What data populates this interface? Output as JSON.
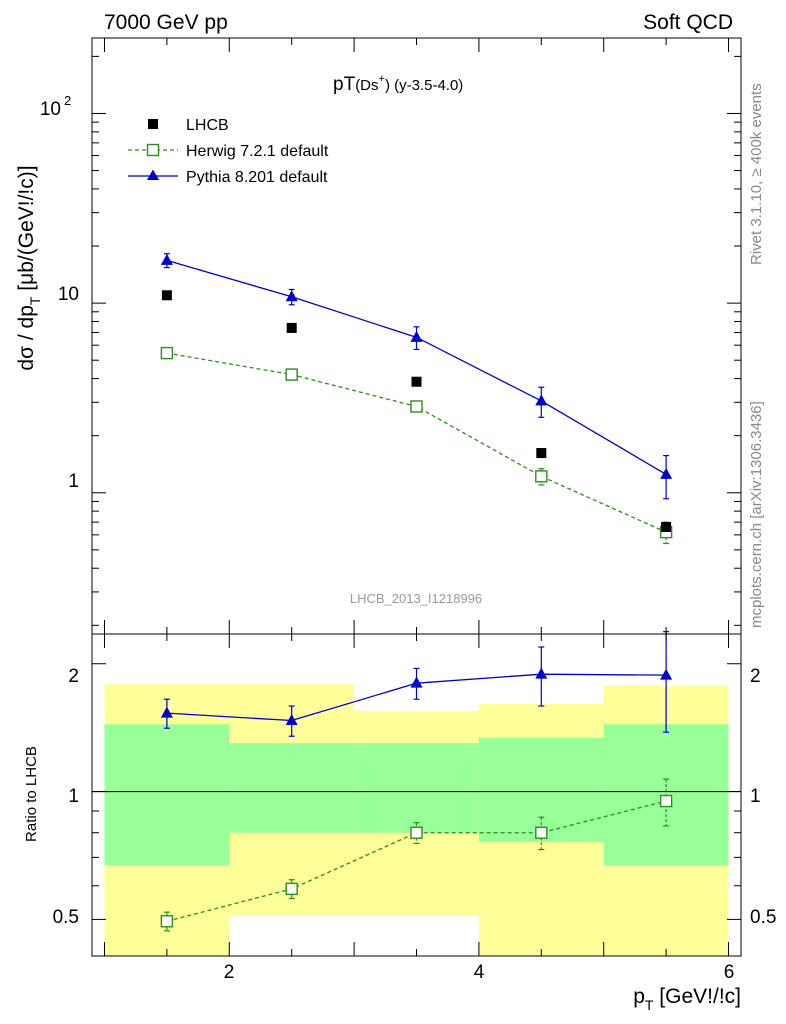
{
  "header": {
    "left": "7000 GeV pp",
    "right": "Soft QCD"
  },
  "side_labels": {
    "rivet": "Rivet 3.1.10, ≥ 400k events",
    "mcplots": "mcplots.cern.ch [arXiv:1306.3436]"
  },
  "watermark": "LHCB_2013_I1218996",
  "main_plot": {
    "title_main": "pT",
    "title_sub": "(Ds",
    "title_sup": "+",
    "title_tail": ") (y-3.5-4.0)",
    "ylabel_pre": "dσ / dp",
    "ylabel_sub": "T",
    "ylabel_post": " [μb/(GeV!/!c)]",
    "yticks": [
      "1",
      "10",
      "10"
    ],
    "ytick_sup": "2"
  },
  "ratio_plot": {
    "ylabel": "Ratio to LHCB",
    "yticks": [
      "0.5",
      "1",
      "2"
    ]
  },
  "xaxis": {
    "label_pre": "p",
    "label_sub": "T",
    "label_post": " [GeV!/!c]",
    "ticks": [
      "2",
      "4",
      "6"
    ]
  },
  "legend": [
    "LHCB",
    "Herwig 7.2.1 default",
    "Pythia 8.201 default"
  ],
  "chart_data": [
    {
      "type": "scatter",
      "title": "pT(Ds+) (y-3.5-4.0)",
      "xlabel": "pT [GeV!/!c]",
      "ylabel": "dσ / dpT [μb/(GeV!/!c)]",
      "xlim": [
        0.9,
        6.1
      ],
      "ylim": [
        0.18,
        250
      ],
      "yscale": "log",
      "x": [
        1.5,
        2.5,
        3.5,
        4.5,
        5.5
      ],
      "series": [
        {
          "name": "LHCB",
          "style": "markers",
          "color": "#000000",
          "values": [
            11.0,
            7.4,
            3.85,
            1.62,
            0.66
          ],
          "bin_edges": [
            1,
            2,
            3,
            4,
            5,
            6
          ]
        },
        {
          "name": "Herwig 7.2.1 default",
          "style": "dashed-line-open-square",
          "color": "#2e8b1e",
          "values": [
            5.45,
            4.2,
            2.85,
            1.22,
            0.62
          ],
          "err_low": [
            0.2,
            0.15,
            0.13,
            0.12,
            0.08
          ],
          "err_high": [
            0.2,
            0.15,
            0.13,
            0.12,
            0.08
          ]
        },
        {
          "name": "Pythia 8.201 default",
          "style": "solid-line-filled-triangle",
          "color": "#0000cc",
          "values": [
            16.8,
            10.8,
            6.6,
            3.05,
            1.25
          ],
          "err_low": [
            1.4,
            1.0,
            0.9,
            0.55,
            0.32
          ],
          "err_high": [
            1.4,
            1.0,
            0.9,
            0.55,
            0.32
          ]
        }
      ]
    },
    {
      "type": "scatter",
      "xlabel": "pT [GeV!/!c]",
      "ylabel": "Ratio to LHCB",
      "xlim": [
        0.9,
        6.1
      ],
      "ylim": [
        0.41,
        2.35
      ],
      "yscale": "log",
      "reference_line": 1,
      "bands": {
        "bin_edges": [
          1,
          2,
          3,
          4,
          5,
          6
        ],
        "inner": {
          "color": "#99ff99",
          "low": [
            0.67,
            0.8,
            0.8,
            0.76,
            0.67
          ],
          "high": [
            1.44,
            1.3,
            1.3,
            1.34,
            1.44
          ]
        },
        "outer": {
          "color": "#ffff99",
          "low": [
            0.41,
            0.51,
            0.51,
            0.4,
            0.37
          ],
          "high": [
            1.79,
            1.79,
            1.55,
            1.61,
            1.78
          ]
        }
      },
      "x": [
        1.5,
        2.5,
        3.5,
        4.5,
        5.5
      ],
      "series": [
        {
          "name": "Herwig 7.2.1 default",
          "color": "#2e8b1e",
          "values": [
            0.495,
            0.59,
            0.8,
            0.8,
            0.95
          ],
          "err_low": [
            0.025,
            0.03,
            0.045,
            0.07,
            0.12
          ],
          "err_high": [
            0.025,
            0.03,
            0.045,
            0.07,
            0.12
          ]
        },
        {
          "name": "Pythia 8.201 default",
          "color": "#0000cc",
          "values": [
            1.53,
            1.47,
            1.8,
            1.89,
            1.88
          ],
          "err_low": [
            0.12,
            0.12,
            0.15,
            0.3,
            0.5
          ],
          "err_high": [
            0.12,
            0.12,
            0.15,
            0.3,
            0.5
          ]
        }
      ]
    }
  ]
}
